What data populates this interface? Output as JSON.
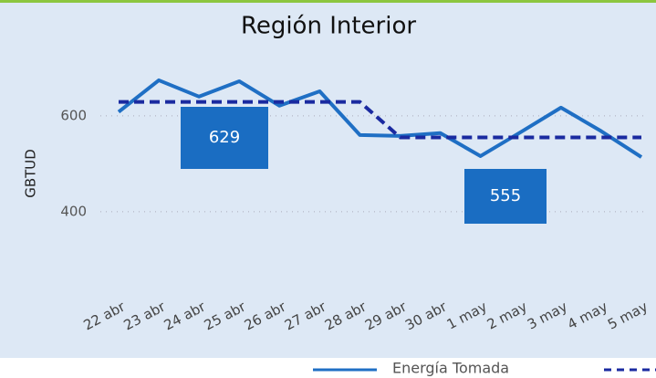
{
  "chart_data": {
    "type": "line",
    "title": "Región Interior",
    "ylabel": "GBTUD",
    "categories": [
      "22 abr",
      "23 abr",
      "24 abr",
      "25 abr",
      "26 abr",
      "27 abr",
      "28 abr",
      "29 abr",
      "30 abr",
      "1 may",
      "2 may",
      "3 may",
      "4 may",
      "5 may"
    ],
    "series": [
      {
        "name": "Energía Tomada",
        "color": "#1f6fc4",
        "dash": false,
        "values": [
          608,
          674,
          640,
          672,
          621,
          651,
          560,
          558,
          564,
          516,
          566,
          617,
          568,
          514
        ]
      },
      {
        "color": "#1a2aa0",
        "dash": true,
        "values": [
          629,
          629,
          629,
          629,
          629,
          629,
          629,
          555,
          555,
          555,
          555,
          555,
          555,
          555
        ]
      }
    ],
    "annotations": [
      "629",
      "555"
    ],
    "ylim": [
      200,
      750
    ],
    "yticks": [
      400,
      600
    ],
    "grid": true
  }
}
